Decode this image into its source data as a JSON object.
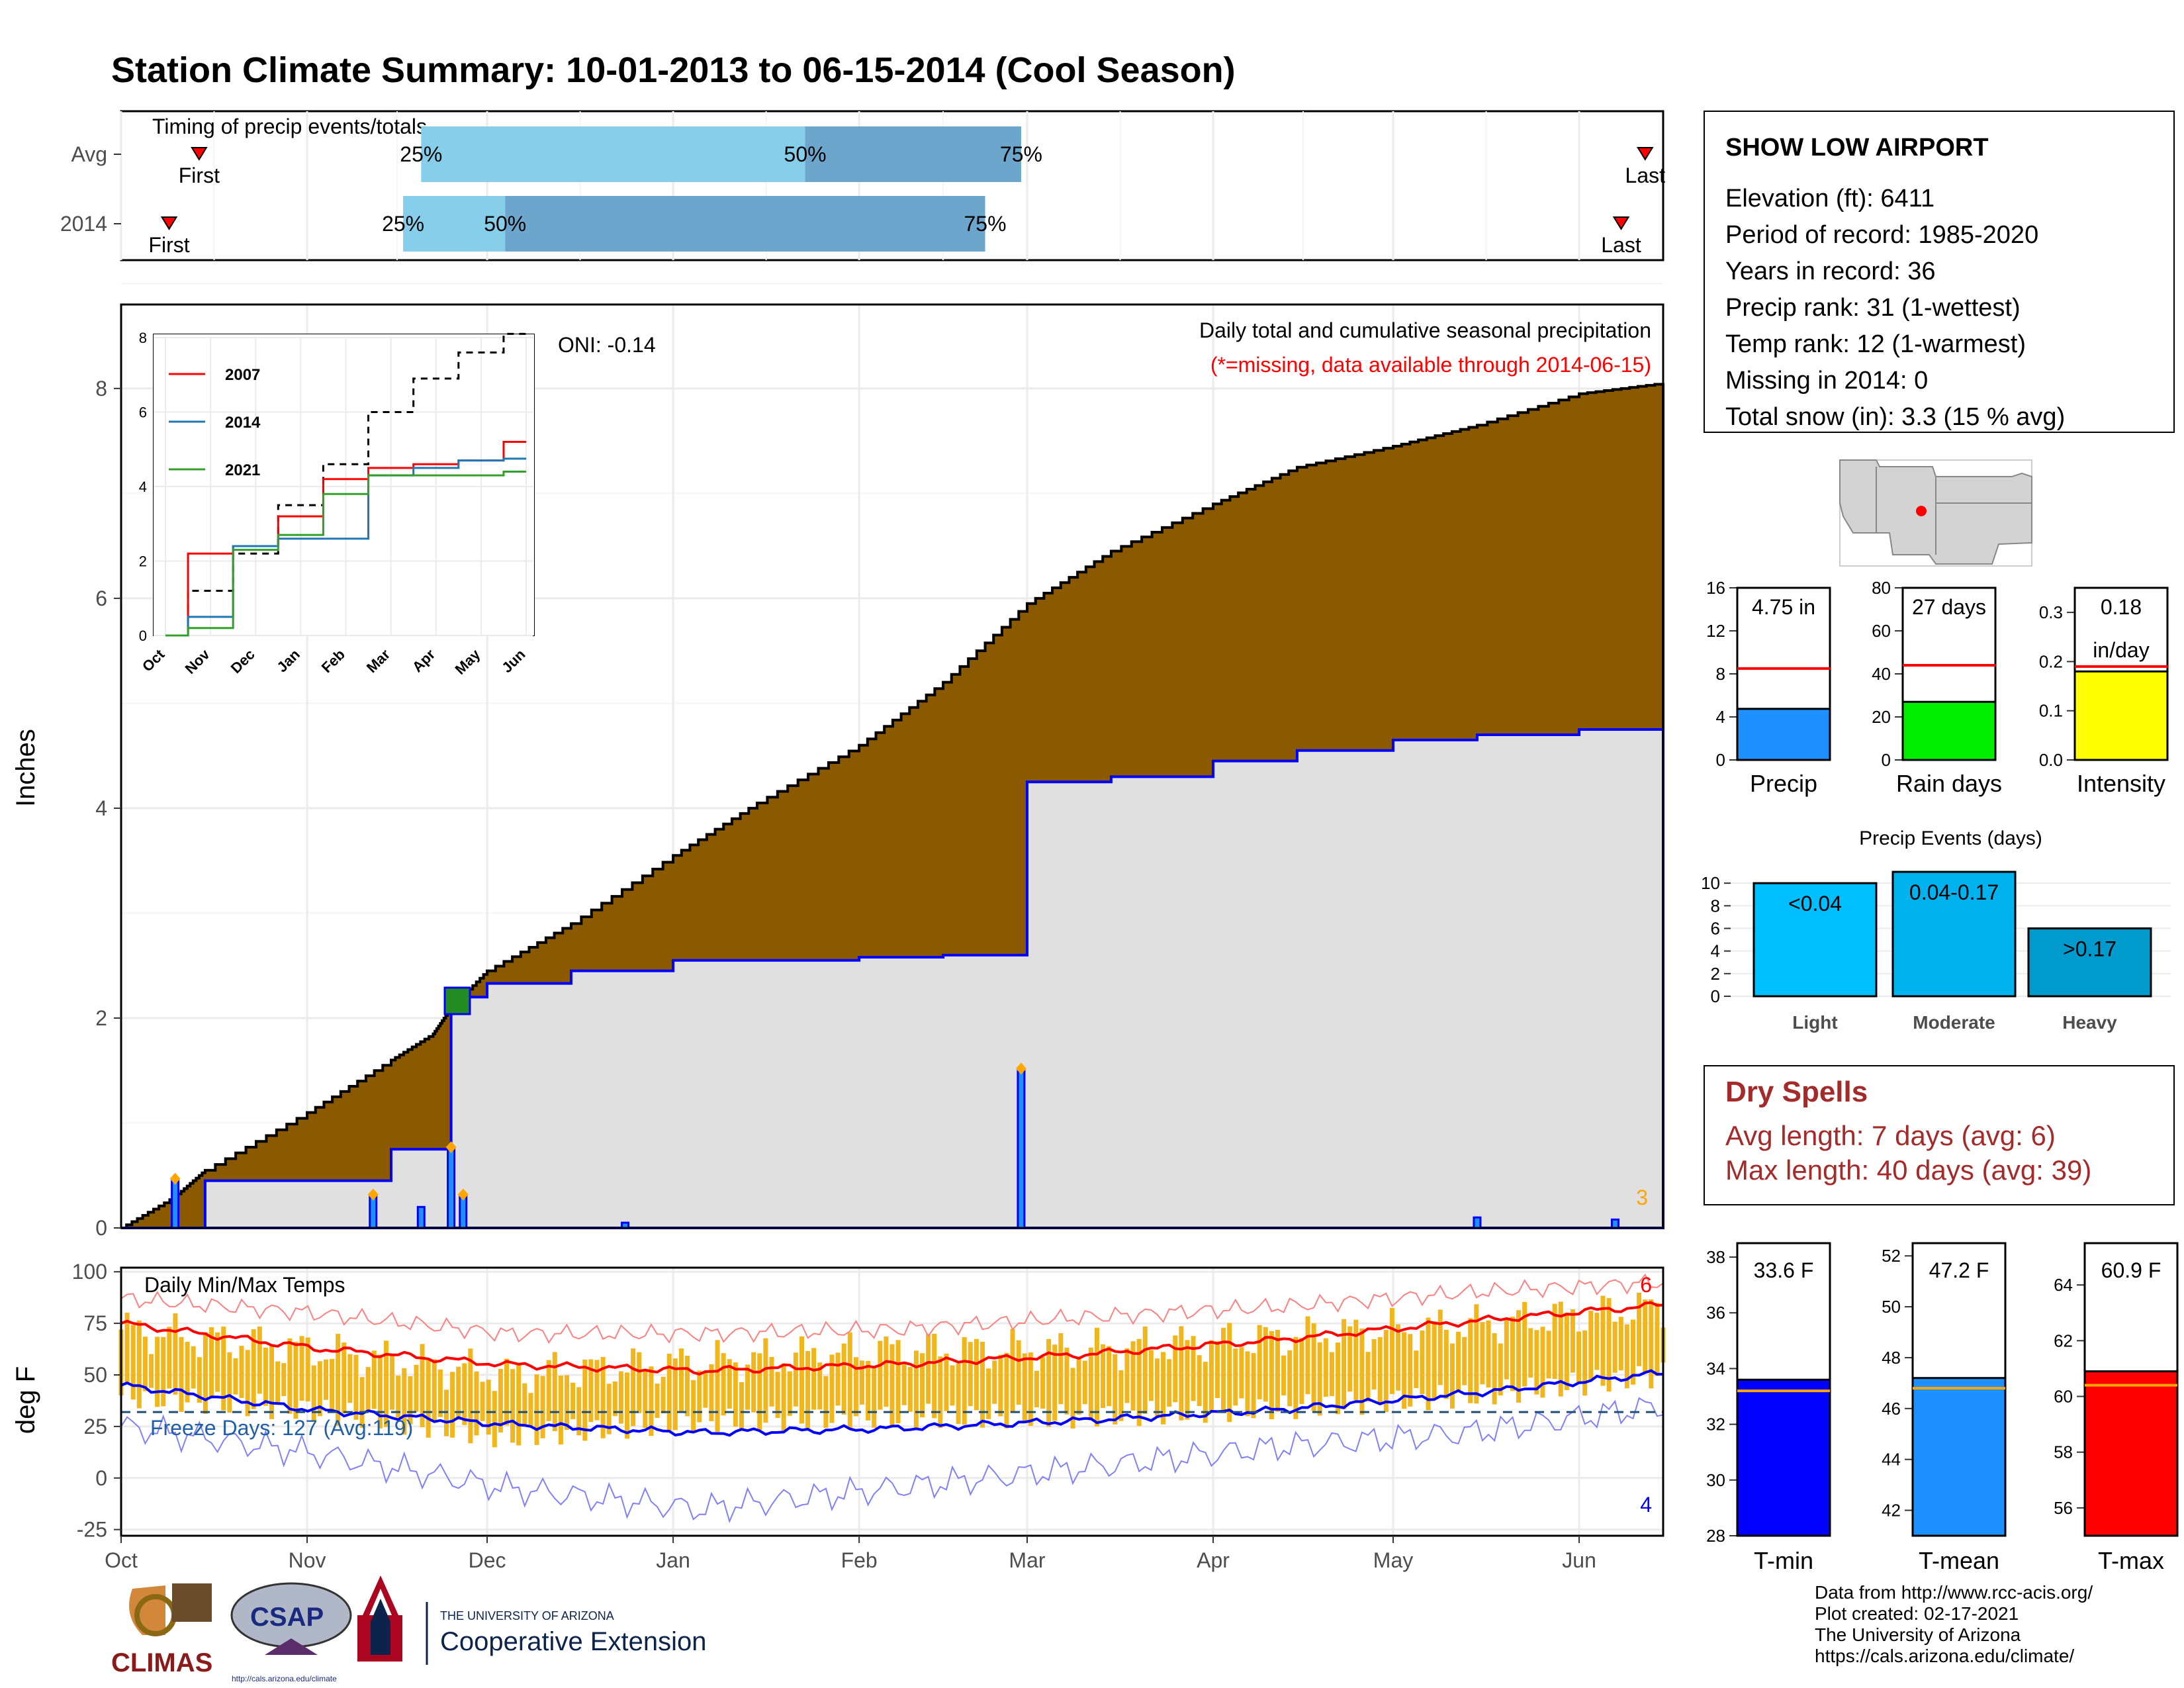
{
  "title": "Station Climate Summary: 10-01-2013 to 06-15-2014 (Cool Season)",
  "colors": {
    "title": "#27408b",
    "brown": "#8b5a00",
    "gray_fill": "#e0e0e0",
    "blue_line": "#0000ff",
    "light_blue": "#87ceeb",
    "mid_blue": "#6ca6cd",
    "red": "#ff0000",
    "green": "#228b22",
    "orange": "#ffa500",
    "gold": "#f2b61d",
    "dark_red_text": "#a52a2a"
  },
  "timing": {
    "title": "Timing of precip events/totals",
    "rows": [
      {
        "label": "Avg",
        "first_label": "First",
        "last_label": "Last",
        "first": "Oct 14",
        "last": "Jun 12",
        "p25_label": "25%",
        "p50_label": "50%",
        "p75_label": "75%",
        "p25": "Nov 20",
        "p50": "Jan 23",
        "p75": "Feb 28"
      },
      {
        "label": "2014",
        "first_label": "First",
        "last_label": "Last",
        "first": "Oct 9",
        "last": "Jun 8",
        "p25_label": "25%",
        "p50_label": "50%",
        "p75_label": "75%",
        "p25": "Nov 17",
        "p50": "Dec 4",
        "p75": "Feb 22"
      }
    ]
  },
  "precip": {
    "ylabel": "Inches",
    "annotation_title": "Daily total and cumulative seasonal precipitation",
    "annotation_missing": "(*=missing, data available through 2014-06-15)",
    "oni": "ONI: -0.14",
    "corner_number": "3",
    "yticks": [
      "0",
      "2",
      "4",
      "6",
      "8"
    ]
  },
  "inset": {
    "yticks": [
      "0",
      "2",
      "4",
      "6",
      "8"
    ],
    "xticks": [
      "Oct",
      "Nov",
      "Dec",
      "Jan",
      "Feb",
      "Mar",
      "Apr",
      "May",
      "Jun"
    ],
    "legend": [
      {
        "name": "2007",
        "color": "#ff0000"
      },
      {
        "name": "2014",
        "color": "#1f78b4"
      },
      {
        "name": "2021",
        "color": "#33a02c"
      }
    ]
  },
  "temps": {
    "title": "Daily Min/Max Temps",
    "ylabel": "deg F",
    "freeze_text": "Freeze Days: 127 (Avg:119)",
    "corner_top": "6",
    "corner_bottom": "4",
    "yticks": [
      "-25",
      "0",
      "25",
      "50",
      "75",
      "100"
    ]
  },
  "xaxis_months": [
    "Oct",
    "Nov",
    "Dec",
    "Jan",
    "Feb",
    "Mar",
    "Apr",
    "May",
    "Jun"
  ],
  "station": {
    "name": "SHOW LOW AIRPORT",
    "lines": [
      "Elevation (ft): 6411",
      "Period of record: 1985-2020",
      "Years in record: 36",
      "Precip rank: 31 (1-wettest)",
      "Temp rank: 12 (1-warmest)",
      "Missing in 2014: 0",
      "Total snow (in): 3.3 (15 % avg)"
    ]
  },
  "small_bars": [
    {
      "label": "Precip",
      "value_text": "4.75 in",
      "value": 4.75,
      "avg": 8.5,
      "ymax": 16,
      "ticks": [
        "0",
        "4",
        "8",
        "12",
        "16"
      ],
      "color": "#1e90ff"
    },
    {
      "label": "Rain days",
      "value_text": "27 days",
      "value": 27,
      "avg": 44,
      "ymax": 80,
      "ticks": [
        "0",
        "20",
        "40",
        "60",
        "80"
      ],
      "color": "#00ee00"
    },
    {
      "label": "Intensity",
      "value_text": "0.18",
      "value_text2": "in/day",
      "value": 0.18,
      "avg": 0.19,
      "ymax": 0.35,
      "ticks": [
        "0.0",
        "0.1",
        "0.2",
        "0.3"
      ],
      "color": "#ffff00"
    }
  ],
  "precip_events": {
    "title": "Precip Events (days)",
    "ticks": [
      "0",
      "2",
      "4",
      "6",
      "8",
      "10"
    ],
    "bars": [
      {
        "label": "Light",
        "inner": "<0.04",
        "value": 10,
        "color": "#00bfff"
      },
      {
        "label": "Moderate",
        "inner": "0.04-0.17",
        "value": 11,
        "color": "#00b2ee"
      },
      {
        "label": "Heavy",
        "inner": ">0.17",
        "value": 6,
        "color": "#009acd"
      }
    ]
  },
  "dry_spells": {
    "title": "Dry Spells",
    "avg_line": "Avg length: 7 days (avg: 6)",
    "max_line": "Max length: 40 days (avg: 39)"
  },
  "temp_bars": [
    {
      "label": "T-min",
      "value_text": "33.6 F",
      "value": 33.6,
      "avg": 33.2,
      "ymin": 28,
      "ymax": 38.5,
      "ticks": [
        "28",
        "30",
        "32",
        "34",
        "36",
        "38"
      ],
      "color": "#0000ff"
    },
    {
      "label": "T-mean",
      "value_text": "47.2 F",
      "value": 47.2,
      "avg": 46.8,
      "ymin": 41,
      "ymax": 52.5,
      "ticks": [
        "42",
        "44",
        "46",
        "48",
        "50",
        "52"
      ],
      "color": "#1e90ff"
    },
    {
      "label": "T-max",
      "value_text": "60.9 F",
      "value": 60.9,
      "avg": 60.4,
      "ymin": 55,
      "ymax": 65.5,
      "ticks": [
        "56",
        "58",
        "60",
        "62",
        "64"
      ],
      "color": "#ff0000"
    }
  ],
  "logos": {
    "climas": "CLIMAS",
    "csap": "CSAP",
    "csap_url": "http://cals.arizona.edu/climate",
    "ua_top": "THE UNIVERSITY OF ARIZONA",
    "ua_bottom": "Cooperative Extension"
  },
  "footer": [
    "Data from http://www.rcc-acis.org/",
    "Plot created: 02-17-2021",
    "The University of Arizona",
    "https://cals.arizona.edu/climate/"
  ],
  "chart_data": [
    {
      "type": "area",
      "title": "Daily total and cumulative seasonal precipitation",
      "ylabel": "Inches",
      "ylim": [
        0,
        8.8
      ],
      "x_dates": [
        "2013-10-01",
        "2013-10-10",
        "2013-10-15",
        "2013-11-01",
        "2013-11-15",
        "2013-11-22",
        "2013-11-25",
        "2013-12-01",
        "2013-12-15",
        "2014-01-01",
        "2014-01-15",
        "2014-02-01",
        "2014-02-15",
        "2014-03-01",
        "2014-03-15",
        "2014-04-01",
        "2014-04-15",
        "2014-05-01",
        "2014-05-15",
        "2014-06-01",
        "2014-06-15"
      ],
      "series": [
        {
          "name": "avg",
          "values": [
            0,
            0.3,
            0.55,
            1.1,
            1.6,
            1.85,
            2.1,
            2.45,
            2.9,
            3.55,
            4.05,
            4.6,
            5.2,
            5.95,
            6.45,
            6.9,
            7.25,
            7.45,
            7.65,
            7.95,
            8.05
          ]
        },
        {
          "name": "2014",
          "values": [
            0,
            0,
            0.45,
            0.45,
            0.75,
            0.75,
            2.2,
            2.33,
            2.45,
            2.55,
            2.55,
            2.58,
            2.6,
            4.25,
            4.3,
            4.45,
            4.55,
            4.65,
            4.7,
            4.75,
            4.75
          ]
        }
      ],
      "daily_bars": [
        {
          "date": "2013-10-10",
          "value": 0.45
        },
        {
          "date": "2013-11-12",
          "value": 0.3
        },
        {
          "date": "2013-11-20",
          "value": 0.2
        },
        {
          "date": "2013-11-25",
          "value": 0.75
        },
        {
          "date": "2013-11-27",
          "value": 0.3
        },
        {
          "date": "2013-12-24",
          "value": 0.05
        },
        {
          "date": "2014-02-28",
          "value": 1.5
        },
        {
          "date": "2014-05-15",
          "value": 0.1
        },
        {
          "date": "2014-06-07",
          "value": 0.08
        }
      ]
    },
    {
      "type": "line",
      "title": "inset cumulative comparison",
      "x": [
        "Oct",
        "Nov",
        "Dec",
        "Jan",
        "Feb",
        "Mar",
        "Apr",
        "May",
        "Jun"
      ],
      "ylim": [
        0,
        8
      ],
      "series": [
        {
          "name": "avg",
          "values": [
            0,
            1.2,
            2.2,
            3.5,
            4.6,
            6.0,
            6.9,
            7.6,
            8.1
          ]
        },
        {
          "name": "2007",
          "values": [
            0,
            2.2,
            2.4,
            3.2,
            4.2,
            4.5,
            4.6,
            4.7,
            5.2
          ]
        },
        {
          "name": "2014",
          "values": [
            0,
            0.5,
            2.4,
            2.6,
            2.6,
            4.3,
            4.5,
            4.7,
            4.75
          ]
        },
        {
          "name": "2021",
          "values": [
            0,
            0.2,
            2.3,
            2.7,
            3.8,
            4.3,
            4.3,
            4.3,
            4.4
          ]
        }
      ]
    },
    {
      "type": "line",
      "title": "Daily Min/Max Temps",
      "ylabel": "deg F",
      "ylim": [
        -28,
        102
      ],
      "x": [
        "Oct",
        "Nov",
        "Dec",
        "Jan",
        "Feb",
        "Mar",
        "Apr",
        "May",
        "Jun"
      ],
      "series": [
        {
          "name": "avg max",
          "values": [
            75,
            63,
            55,
            52,
            55,
            60,
            67,
            76,
            84
          ]
        },
        {
          "name": "avg min",
          "values": [
            45,
            33,
            26,
            22,
            24,
            28,
            33,
            41,
            51
          ]
        },
        {
          "name": "record max",
          "values": [
            87,
            80,
            70,
            70,
            72,
            78,
            83,
            90,
            95
          ]
        },
        {
          "name": "record min",
          "values": [
            25,
            12,
            -5,
            -15,
            -5,
            5,
            15,
            22,
            35
          ]
        },
        {
          "name": "daily max",
          "values": [
            72,
            62,
            50,
            56,
            62,
            62,
            68,
            74,
            83
          ]
        },
        {
          "name": "daily min",
          "values": [
            40,
            33,
            20,
            28,
            30,
            30,
            34,
            40,
            50
          ]
        }
      ],
      "freeze_threshold": 32
    }
  ]
}
